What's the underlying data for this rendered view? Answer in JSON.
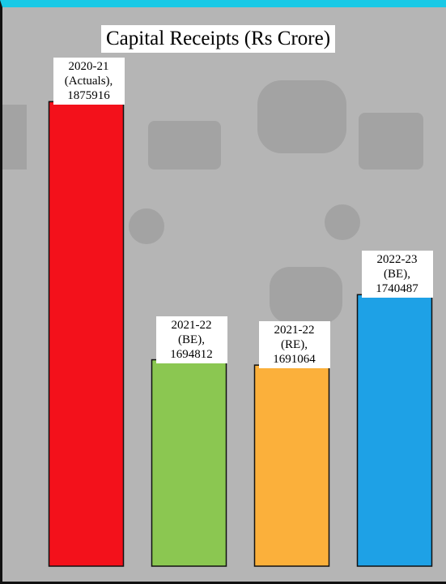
{
  "chart_data": {
    "type": "bar",
    "title": "Capital Receipts (Rs Crore)",
    "categories": [
      "2020-21 (Actuals),",
      "2021-22 (BE),",
      "2021-22 (RE),",
      "2022-23 (BE),"
    ],
    "values": [
      1875916,
      1694812,
      1691064,
      1740487
    ],
    "colors": [
      "#f3111b",
      "#8bc751",
      "#fbb03b",
      "#1ea1e6"
    ],
    "ylim": [
      1550000,
      1900000
    ]
  }
}
